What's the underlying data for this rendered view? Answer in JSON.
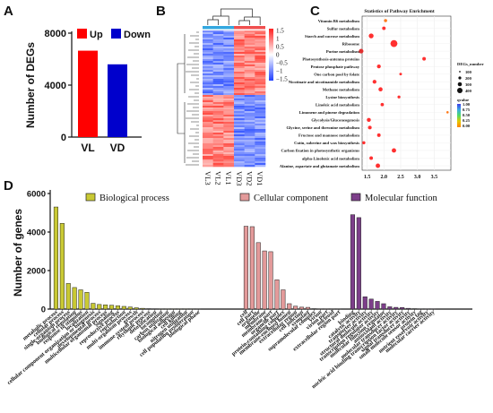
{
  "panels": {
    "a": "A",
    "b": "B",
    "c": "C",
    "d": "D"
  },
  "chart_data": [
    {
      "panel": "A",
      "type": "bar",
      "categories": [
        "VL",
        "VD"
      ],
      "series": [
        {
          "name": "Up",
          "color": "#ff0000",
          "values": [
            6650,
            0
          ]
        },
        {
          "name": "Down",
          "color": "#0000cc",
          "values": [
            0,
            5600
          ]
        }
      ],
      "values": [
        6650,
        5600
      ],
      "ylabel": "Number of DEGs",
      "ylim": [
        0,
        8000
      ],
      "yticks": [
        0,
        4000,
        8000
      ],
      "legend": "top"
    },
    {
      "panel": "B",
      "type": "heatmap",
      "columns": [
        "VL3",
        "VL2",
        "VL1",
        "VD3",
        "VD2",
        "VD1"
      ],
      "colorbar_ticks": [
        "1.5",
        "1",
        "0.5",
        "0",
        "−0.5",
        "−1",
        "−1.5"
      ],
      "colorbar_range": [
        -1.5,
        1.5
      ],
      "colors": {
        "high": "#ff2020",
        "mid": "#ffffff",
        "low": "#2040ff"
      },
      "column_groups": [
        {
          "columns": [
            "VL3",
            "VL2",
            "VL1"
          ],
          "color": "#34a8e0"
        },
        {
          "columns": [
            "VD3",
            "VD2",
            "VD1"
          ],
          "color": "#f05050"
        }
      ],
      "row_blocks": [
        {
          "fraction": 0.47,
          "pattern": [
            -1,
            -1,
            -1,
            1,
            1,
            1
          ]
        },
        {
          "fraction": 0.53,
          "pattern": [
            1,
            1,
            1,
            -1,
            -1,
            -1
          ]
        }
      ]
    },
    {
      "panel": "C",
      "type": "scatter",
      "title": "Statistics of Pathway Enrichment",
      "pathways": [
        "Vitamin B6 metabolism",
        "Sulfur metabolism",
        "Starch and sucrose metabolism",
        "Ribosome",
        "Purine metabolism",
        "Photosynthesis-antenna proteins",
        "Pentose phosphate pathway",
        "One carbon pool by folate",
        "Nicotinate and nicotinamide metabolism",
        "Methane metabolism",
        "Lysine biosynthesis",
        "Linoleic acid metabolism",
        "Limonene and pinene degradation",
        "Glycolysis/Gluconeogenesis",
        "Glycine, serine and threonine metabolism",
        "Fructose and mannose metabolism",
        "Cutin, suberine and wax biosynthesis",
        "Carbon fixation in photosynthetic organisms",
        "alpha-Linolenic acid metabolism",
        "Alanine, aspartate and glutamate metabolism"
      ],
      "x": [
        2.05,
        2.0,
        1.62,
        2.3,
        1.32,
        3.2,
        1.85,
        2.5,
        1.72,
        1.9,
        2.45,
        1.95,
        3.9,
        1.55,
        1.58,
        1.85,
        1.4,
        2.3,
        1.62,
        1.82
      ],
      "size": [
        40,
        60,
        160,
        420,
        140,
        60,
        80,
        20,
        80,
        100,
        30,
        50,
        10,
        90,
        70,
        60,
        40,
        120,
        60,
        120
      ],
      "qvalue": [
        0.2,
        0.3,
        0.5,
        0.6,
        0.9,
        0.6,
        0.5,
        0.4,
        0.3,
        0.7,
        0.4,
        0.3,
        0.2,
        0.6,
        0.5,
        0.5,
        0.4,
        0.8,
        0.4,
        0.7
      ],
      "xticks": [
        "1.5",
        "2.0",
        "2.5",
        "3.0",
        "3.5"
      ],
      "xlim": [
        1.35,
        4.0
      ],
      "legend_size_title": "DEGs_number",
      "legend_sizes": [
        "100",
        "200",
        "300",
        "400"
      ],
      "legend_q_title": "qvalue",
      "legend_q_ticks": [
        "1.00",
        "0.75",
        "0.50",
        "0.25",
        "0.00"
      ]
    },
    {
      "panel": "D",
      "type": "bar",
      "ylabel": "Number of genes",
      "ylim": [
        0,
        6000
      ],
      "yticks": [
        0,
        2000,
        4000,
        6000
      ],
      "groups": [
        {
          "name": "Biological process",
          "color": "#c9c934",
          "categories": [
            "metabolic process",
            "cellular process",
            "single-organism process",
            "biological regulation",
            "response to stimulus",
            "localization",
            "cellular component organization or biogenesis",
            "developmental process",
            "multicellular organismal process",
            "signaling",
            "reproductive process",
            "reproduction",
            "multi-organism process",
            "growth",
            "immune system process",
            "rhythmic process",
            "detoxification",
            "locomotion",
            "carbon utilization",
            "biological adhesion",
            "cell killing",
            "nitrogen utilization",
            "cell population proliferation",
            "biological phase"
          ],
          "values": [
            5300,
            4450,
            1330,
            1120,
            1000,
            870,
            300,
            240,
            220,
            200,
            170,
            140,
            110,
            70,
            40,
            20,
            15,
            10,
            8,
            6,
            5,
            4,
            3,
            2
          ]
        },
        {
          "name": "Cellular component",
          "color": "#e39a9a",
          "categories": [
            "cell",
            "cell part",
            "organelle",
            "membrane",
            "membrane part",
            "organelle part",
            "protein-containing complex",
            "membrane-enclosed lumen",
            "extracellular region",
            "cell junction",
            "symplast",
            "supramolecular complex",
            "virion",
            "virion part",
            "nucleoid",
            "extracellular region part"
          ],
          "values": [
            4300,
            4280,
            3450,
            3020,
            2980,
            1520,
            1000,
            280,
            150,
            100,
            90,
            20,
            10,
            5,
            3,
            2
          ]
        },
        {
          "name": "Molecular function",
          "color": "#7d3f8a",
          "categories": [
            "binding",
            "catalytic activity",
            "transporter activity",
            "structural molecule activity",
            "transcription regulator activity",
            "molecular function regulator",
            "antioxidant activity",
            "molecular transducer activity",
            "nucleic acid binding transcription factor activity",
            "signal transducer activity",
            "small molecule sensor activity",
            "protein tag",
            "nutrient reservoir activity",
            "molecular carrier activity"
          ],
          "values": [
            4900,
            4750,
            640,
            520,
            400,
            280,
            120,
            90,
            80,
            40,
            20,
            10,
            6,
            4
          ]
        }
      ],
      "legend": "top"
    }
  ]
}
